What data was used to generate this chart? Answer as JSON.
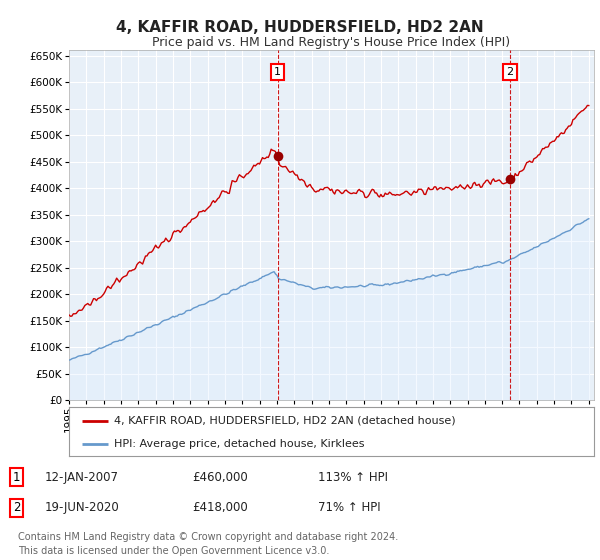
{
  "title": "4, KAFFIR ROAD, HUDDERSFIELD, HD2 2AN",
  "subtitle": "Price paid vs. HM Land Registry's House Price Index (HPI)",
  "ylim": [
    0,
    660000
  ],
  "yticks": [
    0,
    50000,
    100000,
    150000,
    200000,
    250000,
    300000,
    350000,
    400000,
    450000,
    500000,
    550000,
    600000,
    650000
  ],
  "ytick_labels": [
    "£0",
    "£50K",
    "£100K",
    "£150K",
    "£200K",
    "£250K",
    "£300K",
    "£350K",
    "£400K",
    "£450K",
    "£500K",
    "£550K",
    "£600K",
    "£650K"
  ],
  "x_start_year": 1995,
  "x_end_year": 2025,
  "marker1_year": 2007.04,
  "marker1_value": 460000,
  "marker1_label": "1",
  "marker2_year": 2020.46,
  "marker2_value": 418000,
  "marker2_label": "2",
  "red_line_color": "#cc0000",
  "blue_line_color": "#6699cc",
  "blue_fill_color": "#ddeeff",
  "marker_color": "#990000",
  "vline_color": "#cc0000",
  "legend_label_red": "4, KAFFIR ROAD, HUDDERSFIELD, HD2 2AN (detached house)",
  "legend_label_blue": "HPI: Average price, detached house, Kirklees",
  "table_row1": [
    "1",
    "12-JAN-2007",
    "£460,000",
    "113% ↑ HPI"
  ],
  "table_row2": [
    "2",
    "19-JUN-2020",
    "£418,000",
    "71% ↑ HPI"
  ],
  "footnote": "Contains HM Land Registry data © Crown copyright and database right 2024.\nThis data is licensed under the Open Government Licence v3.0.",
  "bg_color": "#ffffff",
  "plot_bg_color": "#e8f0f8",
  "grid_color": "#ffffff",
  "title_fontsize": 11,
  "subtitle_fontsize": 9,
  "tick_fontsize": 7.5,
  "legend_fontsize": 8,
  "table_fontsize": 8.5,
  "footnote_fontsize": 7
}
